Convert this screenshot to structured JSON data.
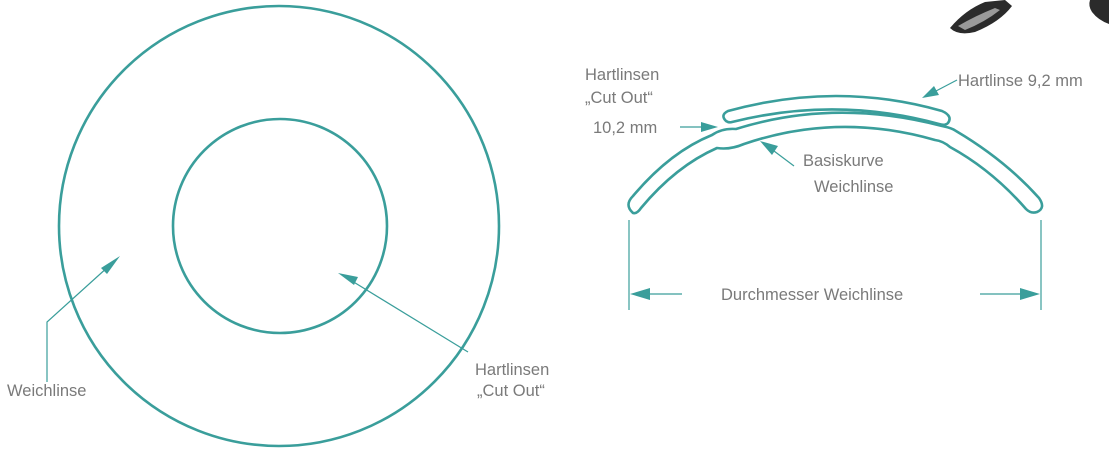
{
  "colors": {
    "line": "#3a9e9b",
    "text": "#7a7a7a"
  },
  "left_view": {
    "outer_label": "Weichlinse",
    "inner_label_line1": "Hartlinsen",
    "inner_label_line2": "„Cut Out“"
  },
  "side_view": {
    "cutout_label_line1": "Hartlinsen",
    "cutout_label_line2": "„Cut Out“",
    "cutout_label_line3": "10,2 mm",
    "hard_lens_label": "Hartlinse 9,2 mm",
    "base_curve_line1": "Basiskurve",
    "base_curve_line2": "Weichlinse",
    "diameter_label": "Durchmesser Weichlinse"
  },
  "decorations": [
    {
      "name": "shoe-icon",
      "visible": "partial"
    }
  ]
}
